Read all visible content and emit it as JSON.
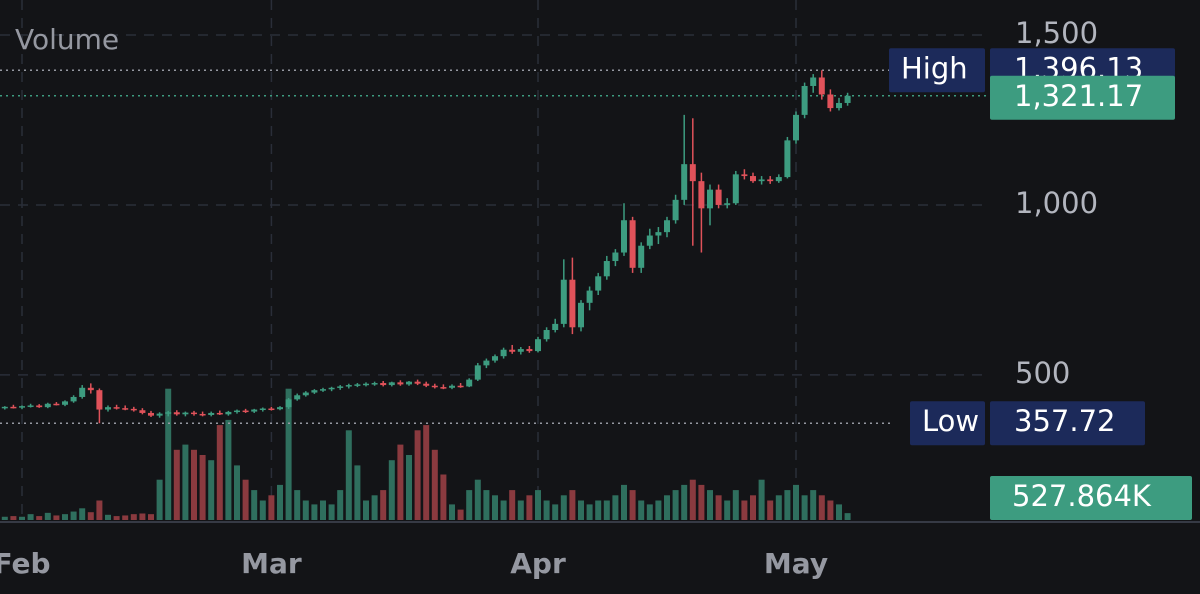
{
  "chart_data": {
    "type": "candlestick",
    "volume_label": "Volume",
    "categories": [
      null,
      null,
      null,
      "Feb",
      null,
      null,
      null,
      null,
      null,
      null,
      null,
      null,
      null,
      null,
      null,
      null,
      null,
      null,
      null,
      null,
      null,
      null,
      null,
      null,
      null,
      null,
      null,
      null,
      null,
      null,
      null,
      null,
      "Mar",
      null,
      null,
      null,
      null,
      null,
      null,
      null,
      null,
      null,
      null,
      null,
      null,
      null,
      null,
      null,
      null,
      null,
      null,
      null,
      null,
      null,
      null,
      null,
      null,
      null,
      null,
      null,
      null,
      null,
      null,
      "Apr",
      null,
      null,
      null,
      null,
      null,
      null,
      null,
      null,
      null,
      null,
      null,
      null,
      null,
      null,
      null,
      null,
      null,
      null,
      null,
      null,
      null,
      null,
      null,
      null,
      null,
      null,
      null,
      null,
      null,
      "May",
      null,
      null,
      null,
      null,
      null,
      null
    ],
    "open": [
      405,
      402,
      406,
      404,
      408,
      410,
      405,
      415,
      412,
      422,
      435,
      462,
      455,
      398,
      405,
      402,
      400,
      396,
      388,
      380,
      386,
      390,
      384,
      389,
      385,
      382,
      388,
      384,
      391,
      395,
      392,
      398,
      401,
      399,
      405,
      428,
      440,
      448,
      455,
      458,
      462,
      466,
      470,
      472,
      474,
      476,
      470,
      478,
      472,
      480,
      474,
      468,
      464,
      462,
      468,
      466,
      486,
      528,
      542,
      555,
      574,
      568,
      576,
      570,
      605,
      632,
      650,
      780,
      640,
      712,
      748,
      790,
      835,
      860,
      955,
      815,
      880,
      910,
      920,
      955,
      1015,
      1120,
      1070,
      990,
      1045,
      1000,
      1005,
      1090,
      1085,
      1070,
      1075,
      1070,
      1082,
      1190,
      1265,
      1350,
      1375,
      1325,
      1285,
      1300
    ],
    "high": [
      410,
      408,
      412,
      410,
      415,
      414,
      418,
      420,
      425,
      440,
      470,
      475,
      460,
      410,
      412,
      410,
      406,
      402,
      394,
      390,
      394,
      396,
      392,
      394,
      392,
      392,
      395,
      394,
      398,
      400,
      400,
      404,
      406,
      408,
      432,
      445,
      452,
      458,
      462,
      465,
      470,
      474,
      476,
      478,
      480,
      482,
      480,
      484,
      482,
      486,
      480,
      474,
      472,
      472,
      476,
      490,
      535,
      548,
      560,
      580,
      588,
      582,
      585,
      612,
      640,
      665,
      840,
      845,
      720,
      760,
      800,
      850,
      870,
      1005,
      965,
      890,
      930,
      935,
      965,
      1030,
      1265,
      1255,
      1095,
      1060,
      1060,
      1020,
      1100,
      1105,
      1095,
      1085,
      1085,
      1090,
      1200,
      1275,
      1360,
      1385,
      1396.13,
      1340,
      1315,
      1330
    ],
    "low": [
      400,
      398,
      401,
      399,
      404,
      403,
      402,
      410,
      408,
      418,
      430,
      445,
      357.72,
      392,
      398,
      396,
      392,
      384,
      376,
      374,
      378,
      380,
      378,
      380,
      378,
      378,
      382,
      380,
      386,
      388,
      388,
      392,
      395,
      396,
      400,
      424,
      436,
      444,
      450,
      452,
      456,
      460,
      464,
      466,
      468,
      466,
      466,
      468,
      468,
      470,
      464,
      460,
      458,
      458,
      462,
      464,
      482,
      520,
      536,
      548,
      562,
      560,
      565,
      566,
      598,
      625,
      640,
      620,
      628,
      690,
      735,
      780,
      820,
      850,
      800,
      800,
      870,
      885,
      905,
      945,
      1000,
      880,
      860,
      940,
      990,
      990,
      1000,
      1075,
      1065,
      1060,
      1062,
      1065,
      1078,
      1180,
      1255,
      1330,
      1310,
      1275,
      1278,
      1292
    ],
    "close": [
      402,
      406,
      404,
      408,
      410,
      405,
      415,
      412,
      422,
      435,
      462,
      455,
      398,
      405,
      402,
      400,
      396,
      388,
      380,
      386,
      390,
      384,
      389,
      385,
      382,
      388,
      384,
      391,
      395,
      392,
      398,
      401,
      399,
      405,
      428,
      440,
      448,
      455,
      458,
      462,
      466,
      470,
      472,
      474,
      476,
      470,
      478,
      472,
      480,
      474,
      468,
      464,
      462,
      468,
      466,
      486,
      528,
      542,
      555,
      574,
      568,
      576,
      570,
      605,
      632,
      650,
      780,
      640,
      712,
      748,
      790,
      835,
      860,
      955,
      815,
      880,
      910,
      920,
      955,
      1015,
      1120,
      1070,
      990,
      1045,
      1000,
      1005,
      1090,
      1085,
      1070,
      1075,
      1070,
      1082,
      1190,
      1265,
      1350,
      1375,
      1325,
      1285,
      1300,
      1321.17
    ],
    "volume": [
      300000,
      250000,
      300000,
      250000,
      450000,
      300000,
      550000,
      350000,
      450000,
      650000,
      900000,
      600000,
      1500000,
      400000,
      300000,
      350000,
      450000,
      500000,
      450000,
      3100000,
      10100000,
      5400000,
      5800000,
      5400000,
      5000000,
      4600000,
      7300000,
      7700000,
      4200000,
      3100000,
      2300000,
      1500000,
      1900000,
      2700000,
      10100000,
      2300000,
      1500000,
      1200000,
      1500000,
      1200000,
      2300000,
      6900000,
      4200000,
      1500000,
      1900000,
      2300000,
      4600000,
      5800000,
      5000000,
      6900000,
      7300000,
      5400000,
      3500000,
      1200000,
      800000,
      2300000,
      3100000,
      2300000,
      1900000,
      1500000,
      2300000,
      1500000,
      1900000,
      2300000,
      1500000,
      1200000,
      1900000,
      2300000,
      1500000,
      1200000,
      1500000,
      1500000,
      1900000,
      2700000,
      2300000,
      1500000,
      1200000,
      1500000,
      1900000,
      2300000,
      2700000,
      3100000,
      2700000,
      2300000,
      1900000,
      1500000,
      2300000,
      1500000,
      1900000,
      3100000,
      1500000,
      1900000,
      2300000,
      2700000,
      1900000,
      2300000,
      1900000,
      1500000,
      1200000,
      527864
    ],
    "up_color": "#3d9c80",
    "down_color": "#e0525a",
    "volume_up_color": "#2f6f5e",
    "volume_down_color": "#8a3a3f",
    "ylim": [
      73,
      1603
    ],
    "yticks": [
      500,
      {
        "value": 1000,
        "label": "1,000"
      },
      {
        "value": 1500,
        "label": "1,500"
      }
    ],
    "y2lim": [
      0,
      40000000
    ],
    "grid": true,
    "markers": [
      {
        "name": "High",
        "value": 1396.13,
        "label": "1,396.13"
      },
      {
        "name": "Low",
        "value": 357.72
      }
    ],
    "last_price": {
      "value": 1321.17,
      "label": "1,321.17"
    },
    "last_volume": {
      "value": 527864,
      "label": "527.864K"
    }
  }
}
